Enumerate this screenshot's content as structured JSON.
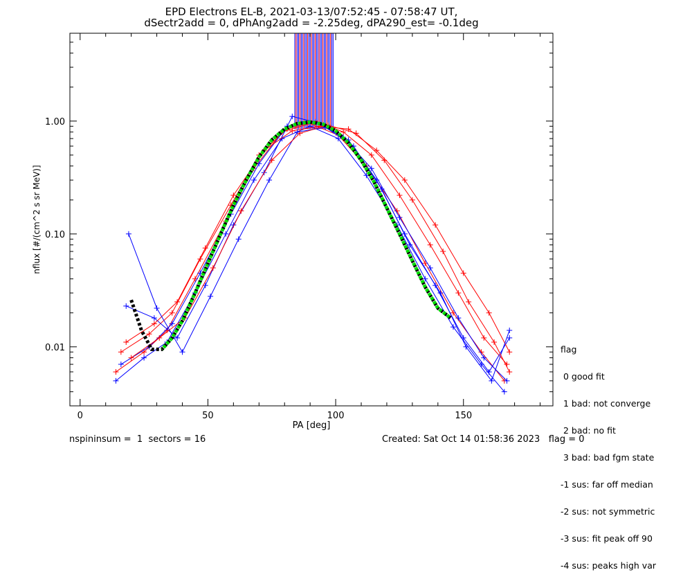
{
  "title_line1": "EPD Electrons EL-B, 2021-03-13/07:52:45 - 07:58:47 UT,",
  "title_line2": "dSectr2add = 0, dPhAng2add = -2.25deg, dPA290_est=  -0.1deg",
  "legend": {
    "title": "flag",
    "items": [
      " 0 good fit",
      " 1 bad: not converge",
      " 2 bad: no fit",
      " 3 bad: bad fgm state",
      "-1 sus: far off median",
      "-2 sus: not symmetric",
      "-3 sus: fit peak off 90",
      "-4 sus: peaks high var"
    ]
  },
  "footer_left": "nspininsum =  1  sectors = 16",
  "footer_right": "Created: Sat Oct 14 01:58:36 2023   flag = 0",
  "colors": {
    "series_red": "#ff0000",
    "series_blue": "#0000ff",
    "fit_green": "#00dd00",
    "fit_black": "#000000"
  },
  "chart_data": {
    "type": "line",
    "xlabel": "PA [deg]",
    "ylabel": "nflux [#/(cm^2 s sr MeV)]",
    "xlim": [
      -4,
      185
    ],
    "ylim": [
      0.003,
      6.0
    ],
    "yscale": "log",
    "xticks": [
      0,
      50,
      100,
      150
    ],
    "xtick_labels": [
      "0",
      "50",
      "100",
      "150"
    ],
    "yticks": [
      0.01,
      0.1,
      1.0
    ],
    "ytick_labels": [
      "0.01",
      "0.10",
      "1.00"
    ],
    "grid": false,
    "series": [
      {
        "color": "red",
        "x": [
          14,
          25,
          34,
          45,
          57,
          68,
          79,
          90,
          101,
          112,
          124,
          135,
          146,
          157,
          166
        ],
        "y": [
          0.006,
          0.009,
          0.014,
          0.04,
          0.13,
          0.38,
          0.8,
          0.95,
          0.75,
          0.4,
          0.16,
          0.055,
          0.02,
          0.009,
          0.005
        ]
      },
      {
        "color": "blue",
        "x": [
          14,
          25,
          34,
          45,
          57,
          68,
          79,
          90,
          101,
          112,
          124,
          135,
          146,
          157,
          166
        ],
        "y": [
          0.005,
          0.008,
          0.011,
          0.03,
          0.1,
          0.3,
          0.7,
          0.9,
          0.7,
          0.33,
          0.12,
          0.04,
          0.015,
          0.007,
          0.004
        ]
      },
      {
        "color": "red",
        "x": [
          16,
          27,
          36,
          47,
          59,
          70,
          81,
          92,
          103,
          114,
          125,
          137,
          148,
          158,
          167
        ],
        "y": [
          0.009,
          0.013,
          0.02,
          0.06,
          0.18,
          0.5,
          0.85,
          1.0,
          0.8,
          0.5,
          0.22,
          0.08,
          0.03,
          0.012,
          0.007
        ]
      },
      {
        "color": "blue",
        "x": [
          16,
          27,
          36,
          47,
          59,
          70,
          81,
          92,
          103,
          114,
          125,
          137,
          148,
          158,
          167
        ],
        "y": [
          0.007,
          0.01,
          0.016,
          0.045,
          0.15,
          0.42,
          0.9,
          0.98,
          0.72,
          0.38,
          0.14,
          0.05,
          0.018,
          0.008,
          0.005
        ]
      },
      {
        "color": "blue",
        "x": [
          18,
          29,
          38,
          49,
          60,
          72,
          83,
          94,
          105,
          116,
          127,
          139,
          150,
          160,
          168
        ],
        "y": [
          0.023,
          0.018,
          0.012,
          0.035,
          0.12,
          0.35,
          1.1,
          0.95,
          0.68,
          0.3,
          0.1,
          0.035,
          0.012,
          0.006,
          0.012
        ]
      },
      {
        "color": "red",
        "x": [
          18,
          29,
          38,
          49,
          60,
          72,
          83,
          94,
          105,
          116,
          127,
          139,
          150,
          160,
          168
        ],
        "y": [
          0.011,
          0.016,
          0.025,
          0.075,
          0.22,
          0.55,
          0.82,
          0.9,
          0.85,
          0.55,
          0.3,
          0.12,
          0.045,
          0.02,
          0.009
        ]
      },
      {
        "color": "blue",
        "x": [
          19,
          30,
          40,
          51,
          62,
          74,
          85,
          96,
          107,
          118,
          129,
          141,
          151,
          161,
          168
        ],
        "y": [
          0.1,
          0.022,
          0.009,
          0.028,
          0.09,
          0.3,
          0.8,
          0.88,
          0.6,
          0.25,
          0.08,
          0.03,
          0.01,
          0.005,
          0.014
        ]
      },
      {
        "color": "red",
        "x": [
          20,
          31,
          41,
          52,
          63,
          75,
          86,
          97,
          108,
          119,
          130,
          142,
          152,
          162,
          168
        ],
        "y": [
          0.008,
          0.012,
          0.018,
          0.05,
          0.16,
          0.45,
          0.78,
          0.92,
          0.78,
          0.45,
          0.2,
          0.07,
          0.025,
          0.011,
          0.006
        ]
      }
    ],
    "fit": {
      "x": [
        20,
        24,
        28,
        32,
        36,
        40,
        45,
        50,
        55,
        60,
        65,
        70,
        75,
        80,
        85,
        90,
        95,
        100,
        105,
        110,
        115,
        120,
        125,
        130,
        135,
        140,
        145
      ],
      "y": [
        0.026,
        0.014,
        0.0095,
        0.0095,
        0.012,
        0.017,
        0.03,
        0.055,
        0.1,
        0.18,
        0.3,
        0.48,
        0.68,
        0.85,
        0.95,
        0.98,
        0.94,
        0.82,
        0.64,
        0.45,
        0.29,
        0.17,
        0.1,
        0.058,
        0.034,
        0.022,
        0.018
      ]
    },
    "spikes": {
      "x_from": 84,
      "x_to": 99,
      "y_from": 0.85
    }
  }
}
